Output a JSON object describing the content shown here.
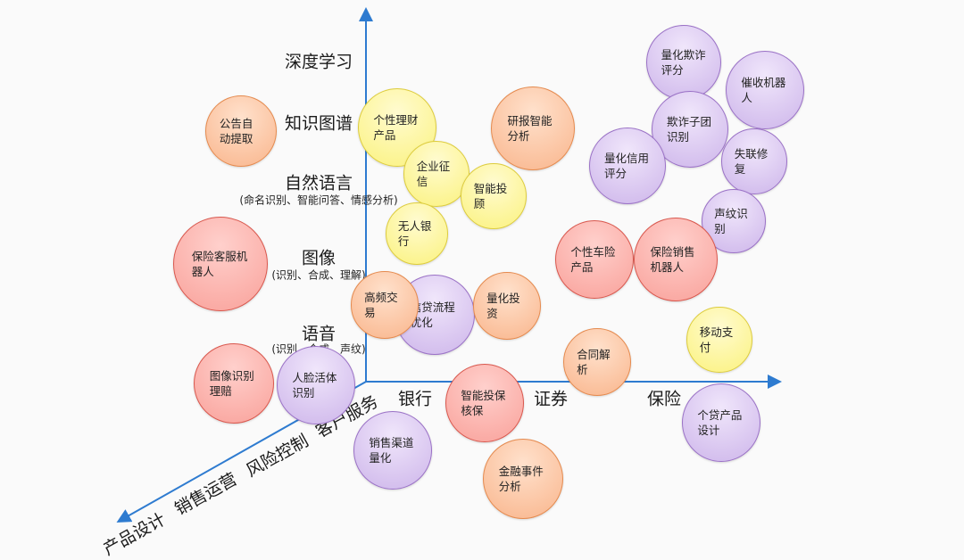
{
  "vertical_axis": {
    "labels": [
      {
        "title": "深度学习",
        "sub": ""
      },
      {
        "title": "知识图谱",
        "sub": ""
      },
      {
        "title": "自然语言",
        "sub": "(命名识别、智能问答、情感分析)"
      },
      {
        "title": "图像",
        "sub": "(识别、合成、理解)"
      },
      {
        "title": "语音",
        "sub": "(识别、合成、声纹)"
      }
    ]
  },
  "horizontal_axis": {
    "labels": [
      "银行",
      "证券",
      "保险"
    ]
  },
  "diagonal_axis": {
    "labels": [
      "客户服务",
      "风险控制",
      "销售运营",
      "产品设计"
    ]
  },
  "colors": {
    "axis": "#2e7bd0",
    "red": "#f9a19a",
    "orange": "#f9b58c",
    "yellow": "#fbf27e",
    "purple": "#cdb5ea"
  },
  "bubbles": [
    {
      "text": "公告自动提取",
      "color": "orange"
    },
    {
      "text": "个性理财产品",
      "color": "yellow"
    },
    {
      "text": "研报智能分析",
      "color": "orange"
    },
    {
      "text": "量化欺诈评分",
      "color": "purple"
    },
    {
      "text": "催收机器人",
      "color": "purple"
    },
    {
      "text": "欺诈子团识别",
      "color": "purple"
    },
    {
      "text": "量化信用评分",
      "color": "purple"
    },
    {
      "text": "失联修复",
      "color": "purple"
    },
    {
      "text": "企业征信",
      "color": "yellow"
    },
    {
      "text": "智能投顾",
      "color": "yellow"
    },
    {
      "text": "无人银行",
      "color": "yellow"
    },
    {
      "text": "声纹识别",
      "color": "purple"
    },
    {
      "text": "保险客服机器人",
      "color": "red"
    },
    {
      "text": "个性车险产品",
      "color": "red"
    },
    {
      "text": "保险销售机器人",
      "color": "red"
    },
    {
      "text": "信贷流程优化",
      "color": "purple"
    },
    {
      "text": "高频交易",
      "color": "orange"
    },
    {
      "text": "量化投资",
      "color": "orange"
    },
    {
      "text": "移动支付",
      "color": "yellow"
    },
    {
      "text": "合同解析",
      "color": "orange"
    },
    {
      "text": "图像识别理赔",
      "color": "red"
    },
    {
      "text": "人脸活体识别",
      "color": "purple"
    },
    {
      "text": "智能投保核保",
      "color": "red"
    },
    {
      "text": "个贷产品设计",
      "color": "purple"
    },
    {
      "text": "销售渠道量化",
      "color": "purple"
    },
    {
      "text": "金融事件分析",
      "color": "orange"
    }
  ]
}
